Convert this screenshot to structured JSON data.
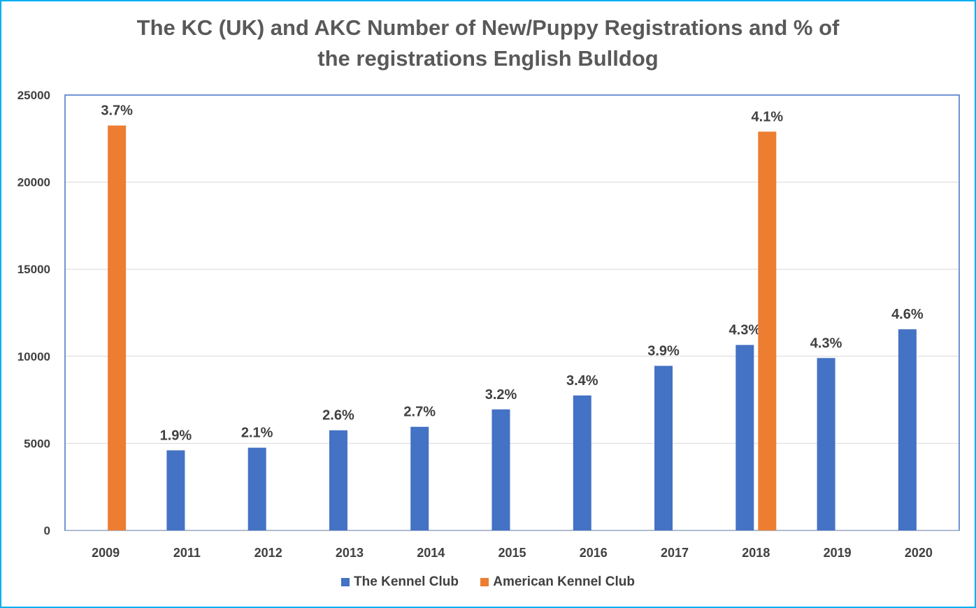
{
  "chart_data": {
    "type": "bar",
    "title_line1": "The KC (UK) and AKC Number of New/Puppy Registrations and % of",
    "title_line2": "the registrations English Bulldog",
    "categories": [
      "2009",
      "2011",
      "2012",
      "2013",
      "2014",
      "2015",
      "2016",
      "2017",
      "2018",
      "2019",
      "2020"
    ],
    "ylim": [
      0,
      25000
    ],
    "yticks": [
      0,
      5000,
      10000,
      15000,
      20000,
      25000
    ],
    "grid": true,
    "legend_position": "bottom",
    "series": [
      {
        "name": "The Kennel Club",
        "color": "#4472c4",
        "values": [
          null,
          4600,
          4750,
          5750,
          5950,
          6950,
          7750,
          9450,
          10650,
          9900,
          11550
        ],
        "labels": [
          null,
          "1.9%",
          "2.1%",
          "2.6%",
          "2.7%",
          "3.2%",
          "3.4%",
          "3.9%",
          "4.3%",
          "4.3%",
          "4.6%"
        ]
      },
      {
        "name": "American Kennel Club",
        "color": "#ed7d31",
        "values": [
          23250,
          null,
          null,
          null,
          null,
          null,
          null,
          null,
          22900,
          null,
          null
        ],
        "labels": [
          "3.7%",
          null,
          null,
          null,
          null,
          null,
          null,
          null,
          "4.1%",
          null,
          null
        ]
      }
    ]
  }
}
